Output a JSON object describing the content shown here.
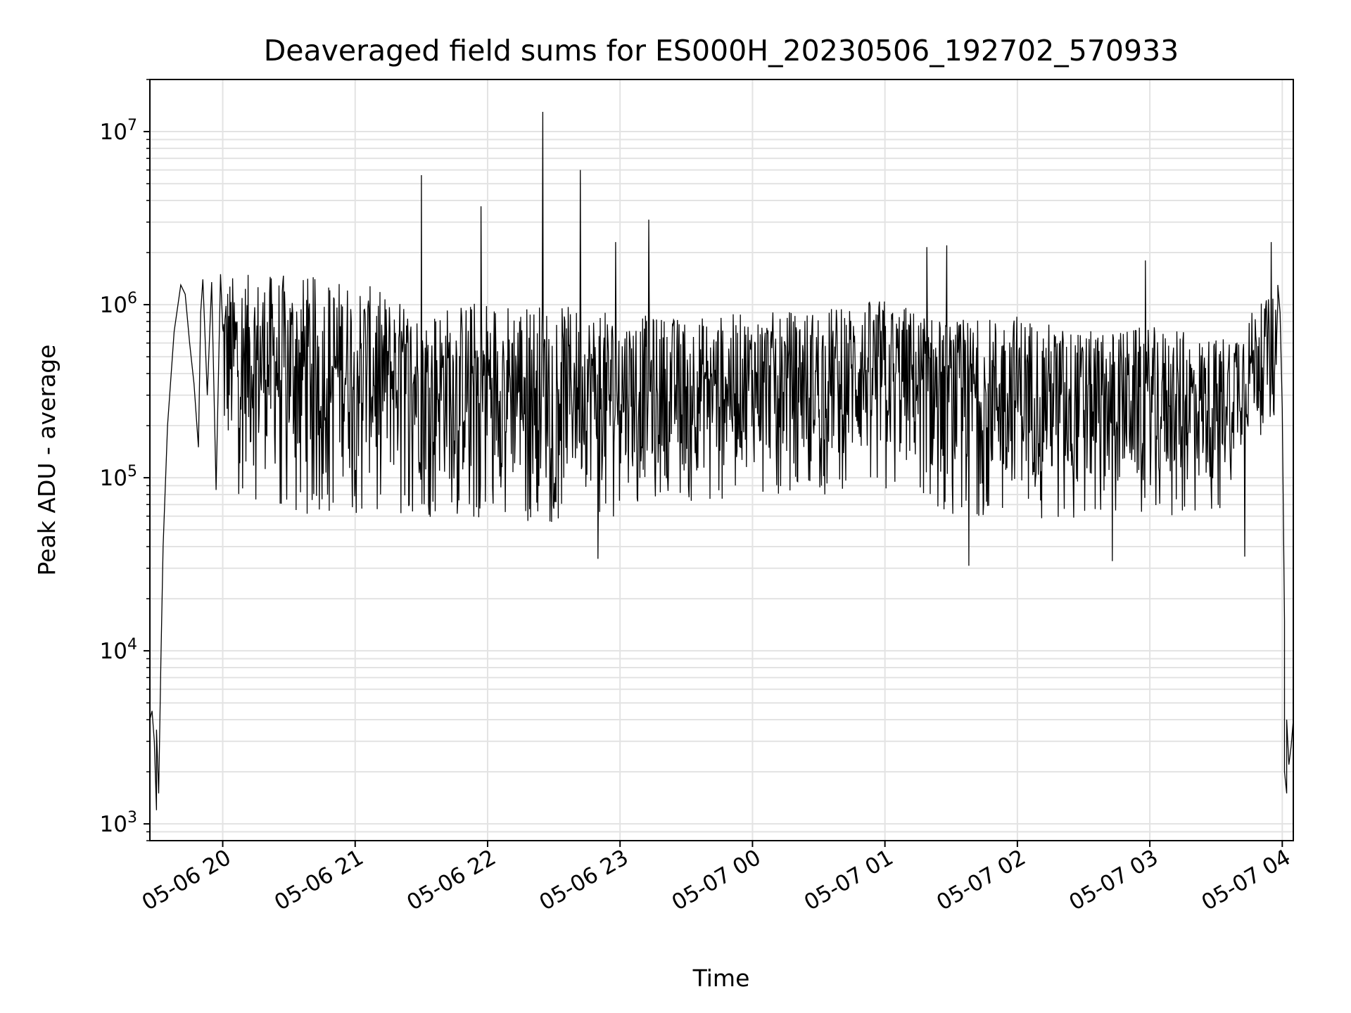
{
  "chart_data": {
    "type": "line",
    "title": "Deaveraged field sums for ES000H_20230506_192702_570933",
    "xlabel": "Time",
    "ylabel": "Peak ADU - average",
    "yscale": "log",
    "ylim": [
      800,
      20000000
    ],
    "xlim": [
      "2023-05-06 19:27",
      "2023-05-07 04:05"
    ],
    "grid": true,
    "x_ticks": [
      {
        "t": "2023-05-06 20:00",
        "label": "05-06 20"
      },
      {
        "t": "2023-05-06 21:00",
        "label": "05-06 21"
      },
      {
        "t": "2023-05-06 22:00",
        "label": "05-06 22"
      },
      {
        "t": "2023-05-06 23:00",
        "label": "05-06 23"
      },
      {
        "t": "2023-05-07 00:00",
        "label": "05-07 00"
      },
      {
        "t": "2023-05-07 01:00",
        "label": "05-07 01"
      },
      {
        "t": "2023-05-07 02:00",
        "label": "05-07 02"
      },
      {
        "t": "2023-05-07 03:00",
        "label": "05-07 03"
      },
      {
        "t": "2023-05-07 04:00",
        "label": "05-07 04"
      }
    ],
    "y_ticks": [
      {
        "v": 1000,
        "base": "10",
        "exp": "3"
      },
      {
        "v": 10000,
        "base": "10",
        "exp": "4"
      },
      {
        "v": 100000,
        "base": "10",
        "exp": "5"
      },
      {
        "v": 1000000,
        "base": "10",
        "exp": "6"
      },
      {
        "v": 10000000,
        "base": "10",
        "exp": "7"
      }
    ],
    "line_color": "#000000",
    "grid_color": "#e3e3e3",
    "series": [
      {
        "values": [
          [
            "2023-05-06 19:27",
            4000
          ],
          [
            "2023-05-06 19:28",
            4500
          ],
          [
            "2023-05-06 19:29",
            3000
          ],
          [
            "2023-05-06 19:30",
            1200
          ],
          [
            "2023-05-06 19:30",
            3500
          ],
          [
            "2023-05-06 19:31",
            1500
          ],
          [
            "2023-05-06 19:32",
            9000
          ],
          [
            "2023-05-06 19:33",
            40000
          ],
          [
            "2023-05-06 19:35",
            200000
          ],
          [
            "2023-05-06 19:38",
            700000
          ],
          [
            "2023-05-06 19:41",
            1300000
          ],
          [
            "2023-05-06 19:43",
            1150000
          ],
          [
            "2023-05-06 19:45",
            600000
          ],
          [
            "2023-05-06 19:47",
            350000
          ],
          [
            "2023-05-06 19:49",
            150000
          ],
          [
            "2023-05-06 19:50",
            900000
          ],
          [
            "2023-05-06 19:51",
            1400000
          ],
          [
            "2023-05-06 19:53",
            300000
          ],
          [
            "2023-05-06 19:55",
            1350000
          ],
          [
            "2023-05-06 19:57",
            85000
          ],
          [
            "2023-05-06 19:59",
            1500000
          ]
        ],
        "noisy_segment": {
          "from": "2023-05-06 20:00",
          "to": "2023-05-07 03:58",
          "envelope": [
            {
              "t": "2023-05-06 20:00",
              "high": 1500000,
              "low": 80000
            },
            {
              "t": "2023-05-06 20:30",
              "high": 1500000,
              "low": 60000
            },
            {
              "t": "2023-05-06 21:00",
              "high": 1400000,
              "low": 60000
            },
            {
              "t": "2023-05-06 21:30",
              "high": 950000,
              "low": 60000
            },
            {
              "t": "2023-05-06 22:00",
              "high": 1100000,
              "low": 55000
            },
            {
              "t": "2023-05-06 22:30",
              "high": 1000000,
              "low": 55000
            },
            {
              "t": "2023-05-06 23:00",
              "high": 900000,
              "low": 60000
            },
            {
              "t": "2023-05-06 23:30",
              "high": 850000,
              "low": 70000
            },
            {
              "t": "2023-05-07 00:00",
              "high": 900000,
              "low": 80000
            },
            {
              "t": "2023-05-07 00:30",
              "high": 950000,
              "low": 80000
            },
            {
              "t": "2023-05-07 01:00",
              "high": 1100000,
              "low": 80000
            },
            {
              "t": "2023-05-07 01:30",
              "high": 800000,
              "low": 60000
            },
            {
              "t": "2023-05-07 02:00",
              "high": 900000,
              "low": 60000
            },
            {
              "t": "2023-05-07 02:30",
              "high": 700000,
              "low": 55000
            },
            {
              "t": "2023-05-07 03:00",
              "high": 750000,
              "low": 60000
            },
            {
              "t": "2023-05-07 03:30",
              "high": 650000,
              "low": 60000
            },
            {
              "t": "2023-05-07 03:58",
              "high": 1200000,
              "low": 250000
            }
          ],
          "spikes": [
            [
              "2023-05-06 21:30",
              5600000
            ],
            [
              "2023-05-06 21:57",
              3700000
            ],
            [
              "2023-05-06 22:25",
              13000000
            ],
            [
              "2023-05-06 22:42",
              6000000
            ],
            [
              "2023-05-06 22:58",
              2300000
            ],
            [
              "2023-05-06 23:13",
              3100000
            ],
            [
              "2023-05-07 01:19",
              2150000
            ],
            [
              "2023-05-07 01:28",
              2200000
            ],
            [
              "2023-05-07 02:58",
              1800000
            ],
            [
              "2023-05-07 03:55",
              2300000
            ]
          ],
          "dips": [
            [
              "2023-05-06 22:50",
              34000
            ],
            [
              "2023-05-07 01:38",
              31000
            ],
            [
              "2023-05-07 02:43",
              33000
            ],
            [
              "2023-05-07 03:43",
              35000
            ]
          ]
        },
        "tail": [
          [
            "2023-05-07 03:58",
            1300000
          ],
          [
            "2023-05-07 03:59",
            900000
          ],
          [
            "2023-05-07 04:00",
            250000
          ],
          [
            "2023-05-07 04:01",
            15000
          ],
          [
            "2023-05-07 04:01",
            2000
          ],
          [
            "2023-05-07 04:02",
            1500
          ],
          [
            "2023-05-07 04:02",
            4000
          ],
          [
            "2023-05-07 04:03",
            2200
          ],
          [
            "2023-05-07 04:04",
            2800
          ],
          [
            "2023-05-07 04:05",
            4000
          ]
        ]
      }
    ]
  }
}
